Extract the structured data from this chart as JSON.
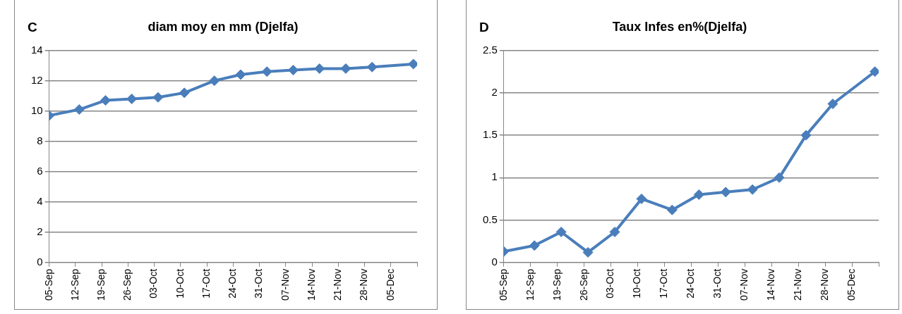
{
  "chart_data": [
    {
      "type": "line",
      "title": "diam moy en mm (Djelfa)",
      "annotations": [
        "C"
      ],
      "x": [
        "--09-05",
        "--09-13",
        "--09-20",
        "--09-27",
        "--10-04",
        "--10-11",
        "--10-19",
        "--10-26",
        "--11-02",
        "--11-09",
        "--11-16",
        "--11-23",
        "--11-30",
        "--12-11"
      ],
      "series": [
        {
          "color": "#4a7ebb",
          "values": [
            9.7,
            10.1,
            10.7,
            10.8,
            10.9,
            11.2,
            12,
            12.4,
            12.6,
            12.7,
            12.8,
            12.8,
            12.9,
            13.1
          ]
        }
      ],
      "xlim": [
        "--09-05",
        "--12-12"
      ],
      "xticks": [
        {
          "value": "--09-05",
          "label": "05-Sep"
        },
        {
          "value": "--09-12",
          "label": "12-Sep"
        },
        {
          "value": "--09-19",
          "label": "19-Sep"
        },
        {
          "value": "--09-26",
          "label": "26-Sep"
        },
        {
          "value": "--10-03",
          "label": "03-Oct"
        },
        {
          "value": "--10-10",
          "label": "10-Oct"
        },
        {
          "value": "--10-17",
          "label": "17-Oct"
        },
        {
          "value": "--10-24",
          "label": "24-Oct"
        },
        {
          "value": "--10-31",
          "label": "31-Oct"
        },
        {
          "value": "--11-07",
          "label": "07-Nov"
        },
        {
          "value": "--11-14",
          "label": "14-Nov"
        },
        {
          "value": "--11-21",
          "label": "21-Nov"
        },
        {
          "value": "--11-28",
          "label": "28-Nov"
        },
        {
          "value": "--12-05",
          "label": "05-Dec"
        },
        {
          "value": "--12-12",
          "label": null
        }
      ],
      "ylim": [
        0,
        14
      ],
      "yticks": [
        0,
        2,
        4,
        6,
        8,
        10,
        12,
        14
      ],
      "grid": "y",
      "legend": false,
      "marker": "diamond",
      "line_style": "solid"
    },
    {
      "type": "line",
      "title": "Taux Infes en%(Djelfa)",
      "annotations": [
        "D"
      ],
      "x": [
        "--09-05",
        "--09-13",
        "--09-20",
        "--09-27",
        "--10-04",
        "--10-11",
        "--10-19",
        "--10-26",
        "--11-02",
        "--11-09",
        "--11-16",
        "--11-23",
        "--11-30",
        "--12-11"
      ],
      "series": [
        {
          "color": "#4a7ebb",
          "values": [
            0.13,
            0.2,
            0.36,
            0.12,
            0.36,
            0.75,
            0.62,
            0.8,
            0.83,
            0.86,
            1,
            1.5,
            1.87,
            2.25
          ]
        }
      ],
      "xlim": [
        "--09-05",
        "--12-12"
      ],
      "xticks": [
        {
          "value": "--09-05",
          "label": "05-Sep"
        },
        {
          "value": "--09-12",
          "label": "12-Sep"
        },
        {
          "value": "--09-19",
          "label": "19-Sep"
        },
        {
          "value": "--09-26",
          "label": "26-Sep"
        },
        {
          "value": "--10-03",
          "label": "03-Oct"
        },
        {
          "value": "--10-10",
          "label": "10-Oct"
        },
        {
          "value": "--10-17",
          "label": "17-Oct"
        },
        {
          "value": "--10-24",
          "label": "24-Oct"
        },
        {
          "value": "--10-31",
          "label": "31-Oct"
        },
        {
          "value": "--11-07",
          "label": "07-Nov"
        },
        {
          "value": "--11-14",
          "label": "14-Nov"
        },
        {
          "value": "--11-21",
          "label": "21-Nov"
        },
        {
          "value": "--11-28",
          "label": "28-Nov"
        },
        {
          "value": "--12-05",
          "label": "05-Dec"
        },
        {
          "value": "--12-12",
          "label": null
        }
      ],
      "ylim": [
        0,
        2.5
      ],
      "yticks": [
        0,
        0.5,
        1,
        1.5,
        2,
        2.5
      ],
      "grid": "y",
      "legend": false,
      "marker": "diamond",
      "line_style": "solid"
    }
  ]
}
